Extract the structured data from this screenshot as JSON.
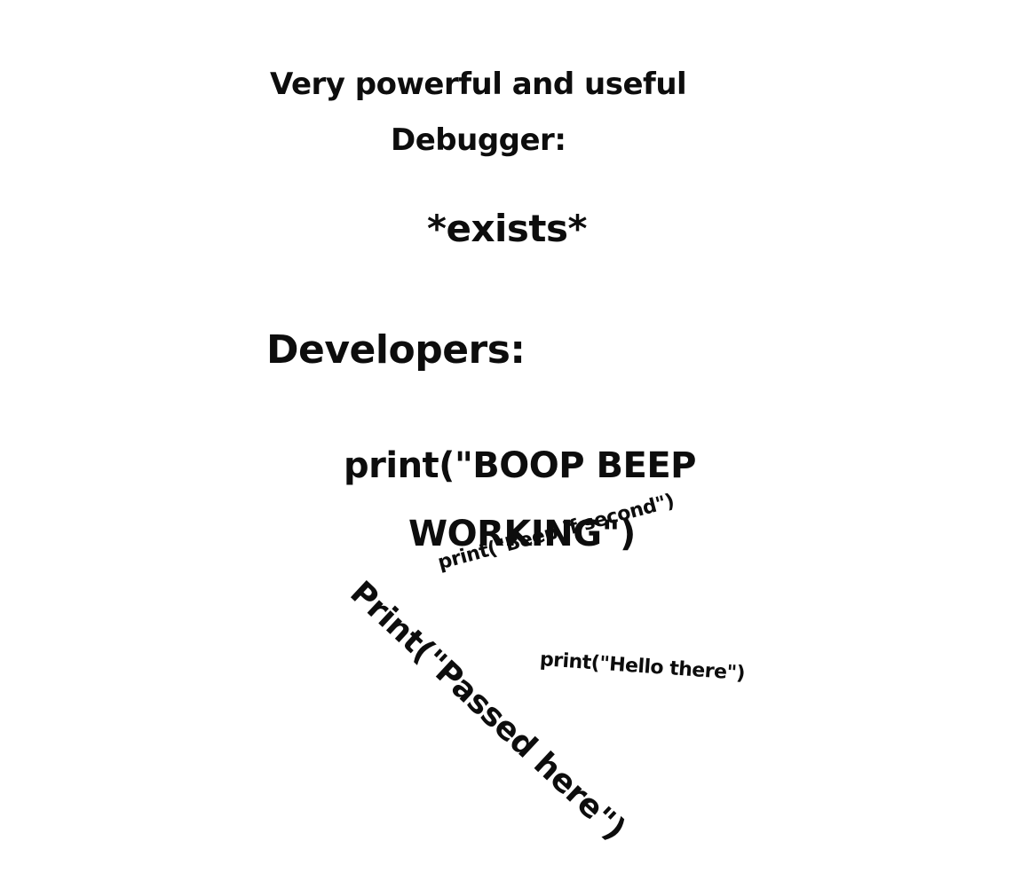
{
  "meme": {
    "intro": {
      "line1": "Very powerful and useful",
      "line2": "Debugger:",
      "action": "*exists*"
    },
    "response": {
      "label": "Developers:",
      "main_print_line1": "print(\"BOOP BEEP",
      "main_print_line2": "WORKING\")",
      "scattered_prints": [
        "print(\"Beep if second\")",
        "Print(\"Passed here\")",
        "print(\"Hello there\")"
      ]
    }
  }
}
